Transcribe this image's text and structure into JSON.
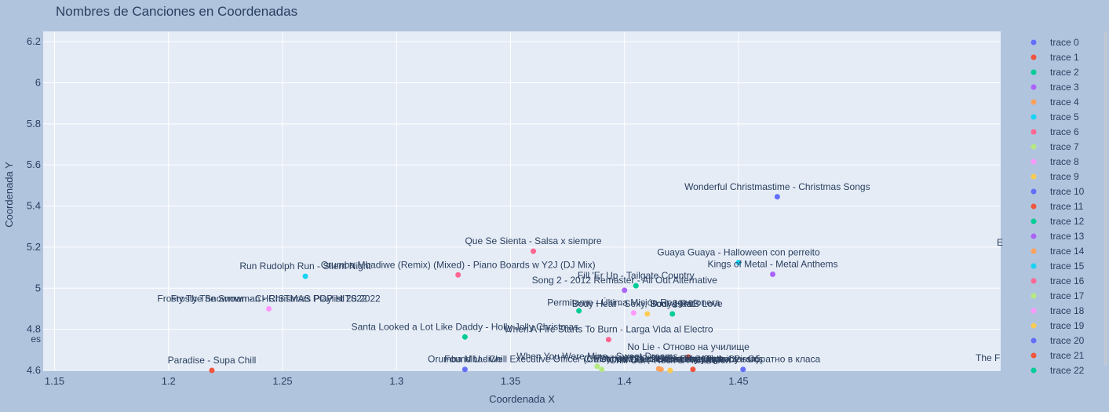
{
  "chart_data": {
    "type": "scatter",
    "title": "Nombres de Canciones en Coordenadas",
    "xlabel": "Coordenada X",
    "ylabel": "Coordenada Y",
    "xlim": [
      1.145,
      1.565
    ],
    "ylim": [
      4.6,
      6.25
    ],
    "x_ticks": [
      "1.15",
      "1.2",
      "1.25",
      "1.3",
      "1.35",
      "1.4",
      "1.45"
    ],
    "x_tick_values": [
      1.15,
      1.2,
      1.25,
      1.3,
      1.35,
      1.4,
      1.45
    ],
    "y_ticks": [
      "4.6",
      "4.8",
      "5",
      "5.2",
      "5.4",
      "5.6",
      "5.8",
      "6",
      "6.2"
    ],
    "y_tick_values": [
      4.6,
      4.8,
      5.0,
      5.2,
      5.4,
      5.6,
      5.8,
      6.0,
      6.2
    ],
    "grid": true,
    "legend_position": "right",
    "colors": [
      "#636efa",
      "#ef553b",
      "#00cc96",
      "#ab63fa",
      "#ffa15a",
      "#19d3f3",
      "#ff6692",
      "#b6e880",
      "#ff97ff",
      "#fecb52"
    ],
    "series": [
      {
        "name": "trace 0",
        "x": [
          1.467
        ],
        "y": [
          5.445
        ],
        "label": "Wonderful Christmastime - Christmas Songs"
      },
      {
        "name": "trace 1",
        "x": [
          1.428
        ],
        "y": [
          4.665
        ],
        "label": "No Lie - Отново на училище"
      },
      {
        "name": "trace 2",
        "x": [
          1.405
        ],
        "y": [
          5.012
        ],
        "label": "Fill 'Er Up - Tailgate Country"
      },
      {
        "name": "trace 3",
        "x": [
          1.4
        ],
        "y": [
          4.99
        ],
        "label": "Song 2 - 2012 Remaster - All Out Alternative"
      },
      {
        "name": "trace 4",
        "x": [
          1.416
        ],
        "y": [
          4.605
        ],
        "label": "Christmas Time - Christmas Classics"
      },
      {
        "name": "trace 5",
        "x": [
          1.26
        ],
        "y": [
          5.058
        ],
        "label": "Run Rudolph Run - Silent Night"
      },
      {
        "name": "trace 6",
        "x": [
          1.36
        ],
        "y": [
          5.18
        ],
        "label": "Que Se Sienta - Salsa x siempre"
      },
      {
        "name": "trace 7",
        "x": [
          1.39
        ],
        "y": [
          4.605
        ],
        "label": "Found U - Chill Executive Officer (CEO), Vol. 21 (Selected by Maykel Piron)"
      },
      {
        "name": "trace 8",
        "x": [
          1.244
        ],
        "y": [
          4.9
        ],
        "label": "Frosty The Snowman - CHRISTMAS POP HITS 2022"
      },
      {
        "name": "trace 9",
        "x": [
          1.41
        ],
        "y": [
          4.875
        ],
        "label": "Body Heat - Sexy, Soul & R&B Love"
      },
      {
        "name": "trace 10",
        "x": [
          1.452
        ],
        "y": [
          4.605
        ],
        "label": "Sweet Symphony - Обратно в класа"
      },
      {
        "name": "trace 11",
        "x": [
          1.43
        ],
        "y": [
          4.605
        ],
        "label": "Walk of Life - Drive Time Classics"
      },
      {
        "name": "trace 12",
        "x": [
          1.33
        ],
        "y": [
          4.763
        ],
        "label": "Santa Looked a Lot Like Daddy - Holly Jolly Christmas"
      },
      {
        "name": "trace 13",
        "x": [
          1.465
        ],
        "y": [
          5.068
        ],
        "label": "Kings of Metal - Metal Anthems"
      },
      {
        "name": "trace 14",
        "x": [
          1.415
        ],
        "y": [
          4.608
        ],
        "label": "Meribodo - Collective Thoughts"
      },
      {
        "name": "trace 15",
        "x": [
          1.45
        ],
        "y": [
          5.125
        ],
        "label": "Guaya Guaya - Halloween con perreito"
      },
      {
        "name": "trace 16",
        "x": [
          1.393
        ],
        "y": [
          4.75
        ],
        "label": "When A Fire Starts To Burn - Larga Vida al Electro"
      },
      {
        "name": "trace 17",
        "x": [
          1.388
        ],
        "y": [
          4.62
        ],
        "label": "When You Were Mine - Sweet Dreams"
      },
      {
        "name": "trace 18",
        "x": [
          1.404
        ],
        "y": [
          4.88
        ],
        "label": "Permitame - Última Misión Reggaetonera"
      },
      {
        "name": "trace 19",
        "x": [
          1.42
        ],
        "y": [
          4.6
        ],
        "label": "Chill Out - Rock & Halloween"
      },
      {
        "name": "trace 20",
        "x": [
          1.33
        ],
        "y": [
          4.605
        ],
        "label": "Orumba Mbadiwe"
      },
      {
        "name": "trace 21",
        "x": [
          1.219
        ],
        "y": [
          4.6
        ],
        "label": "Paradise - Supa Chill"
      },
      {
        "name": "trace 22",
        "x": [
          1.421
        ],
        "y": [
          4.875
        ],
        "label": "Body Heat"
      }
    ],
    "extra_points": [
      {
        "x": 1.327,
        "y": 5.065,
        "color": "#ff6692",
        "label": "Orumba Mbadiwe (Remix) (Mixed) - Piano Boards w Y2J (DJ Mix)"
      },
      {
        "x": 1.38,
        "y": 4.89,
        "color": "#00cc96",
        "label": ""
      },
      {
        "x": 1.244,
        "y": 4.9,
        "color": "#ff97ff",
        "label": "Frosty The Snowman - Christmas Playlist 2022"
      }
    ],
    "edge_labels": [
      {
        "text": "es",
        "side": "left"
      },
      {
        "text": "E",
        "side": "right"
      },
      {
        "text": "The F",
        "side": "right"
      }
    ]
  }
}
